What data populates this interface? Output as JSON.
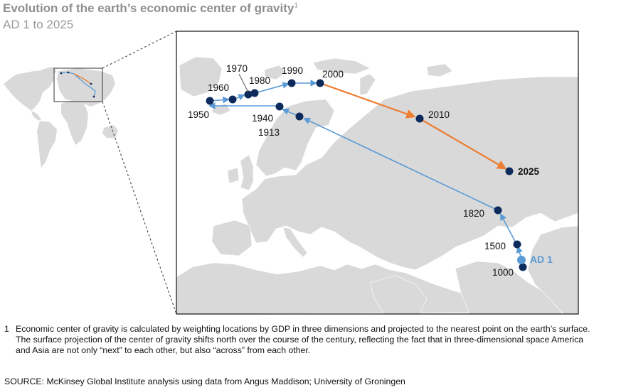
{
  "header": {
    "title": "Evolution of the earth’s economic center of gravity",
    "title_note": "1",
    "subtitle": "AD 1 to 2025"
  },
  "map": {
    "points": [
      {
        "label": "AD 1",
        "style": "highlight"
      },
      {
        "label": "1000",
        "style": "normal"
      },
      {
        "label": "1500",
        "style": "normal"
      },
      {
        "label": "1820",
        "style": "normal"
      },
      {
        "label": "1913",
        "style": "normal"
      },
      {
        "label": "1940",
        "style": "normal"
      },
      {
        "label": "1950",
        "style": "normal"
      },
      {
        "label": "1960",
        "style": "normal"
      },
      {
        "label": "1970",
        "style": "normal"
      },
      {
        "label": "1980",
        "style": "normal"
      },
      {
        "label": "1990",
        "style": "normal"
      },
      {
        "label": "2000",
        "style": "normal"
      },
      {
        "label": "2010",
        "style": "normal"
      },
      {
        "label": "2025",
        "style": "bold"
      }
    ],
    "colors": {
      "historical_path": "#5b9bd5",
      "projected_path": "#ed7d31",
      "point": "#0d2a5c",
      "ad1_point": "#5b9bd5",
      "land": "#d9d9d9",
      "sea": "#ffffff"
    }
  },
  "footnote": {
    "number": "1",
    "text": "Economic center of gravity is calculated by weighting locations by GDP in three dimensions and projected to the nearest point on the earth’s surface. The surface projection of the center of gravity shifts north over the course of the century, reflecting the fact that in three-dimensional space America and Asia are not only “next” to each other, but also “across” from each other."
  },
  "source": "SOURCE: McKinsey Global Institute analysis using data from Angus Maddison; University of Groningen"
}
